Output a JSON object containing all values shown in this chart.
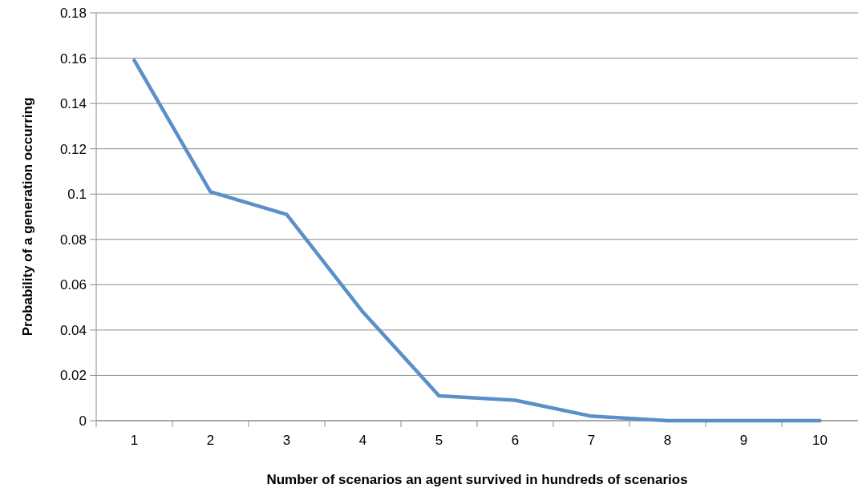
{
  "chart_data": {
    "type": "line",
    "xlabel": "Number of scenarios an agent survived in hundreds of scenarios",
    "ylabel": "Probability of a generation occurring",
    "categories": [
      "1",
      "2",
      "3",
      "4",
      "5",
      "6",
      "7",
      "8",
      "9",
      "10"
    ],
    "series": [
      {
        "color": "#5b8fc9",
        "values": [
          0.159,
          0.101,
          0.091,
          0.048,
          0.011,
          0.009,
          0.002,
          0,
          0,
          0
        ]
      }
    ],
    "ylim": [
      0,
      0.18
    ],
    "yticks": [
      0,
      0.02,
      0.04,
      0.06,
      0.08,
      0.1,
      0.12,
      0.14,
      0.16,
      0.18
    ],
    "grid": "y",
    "marker": "none",
    "line_style": "solid"
  }
}
